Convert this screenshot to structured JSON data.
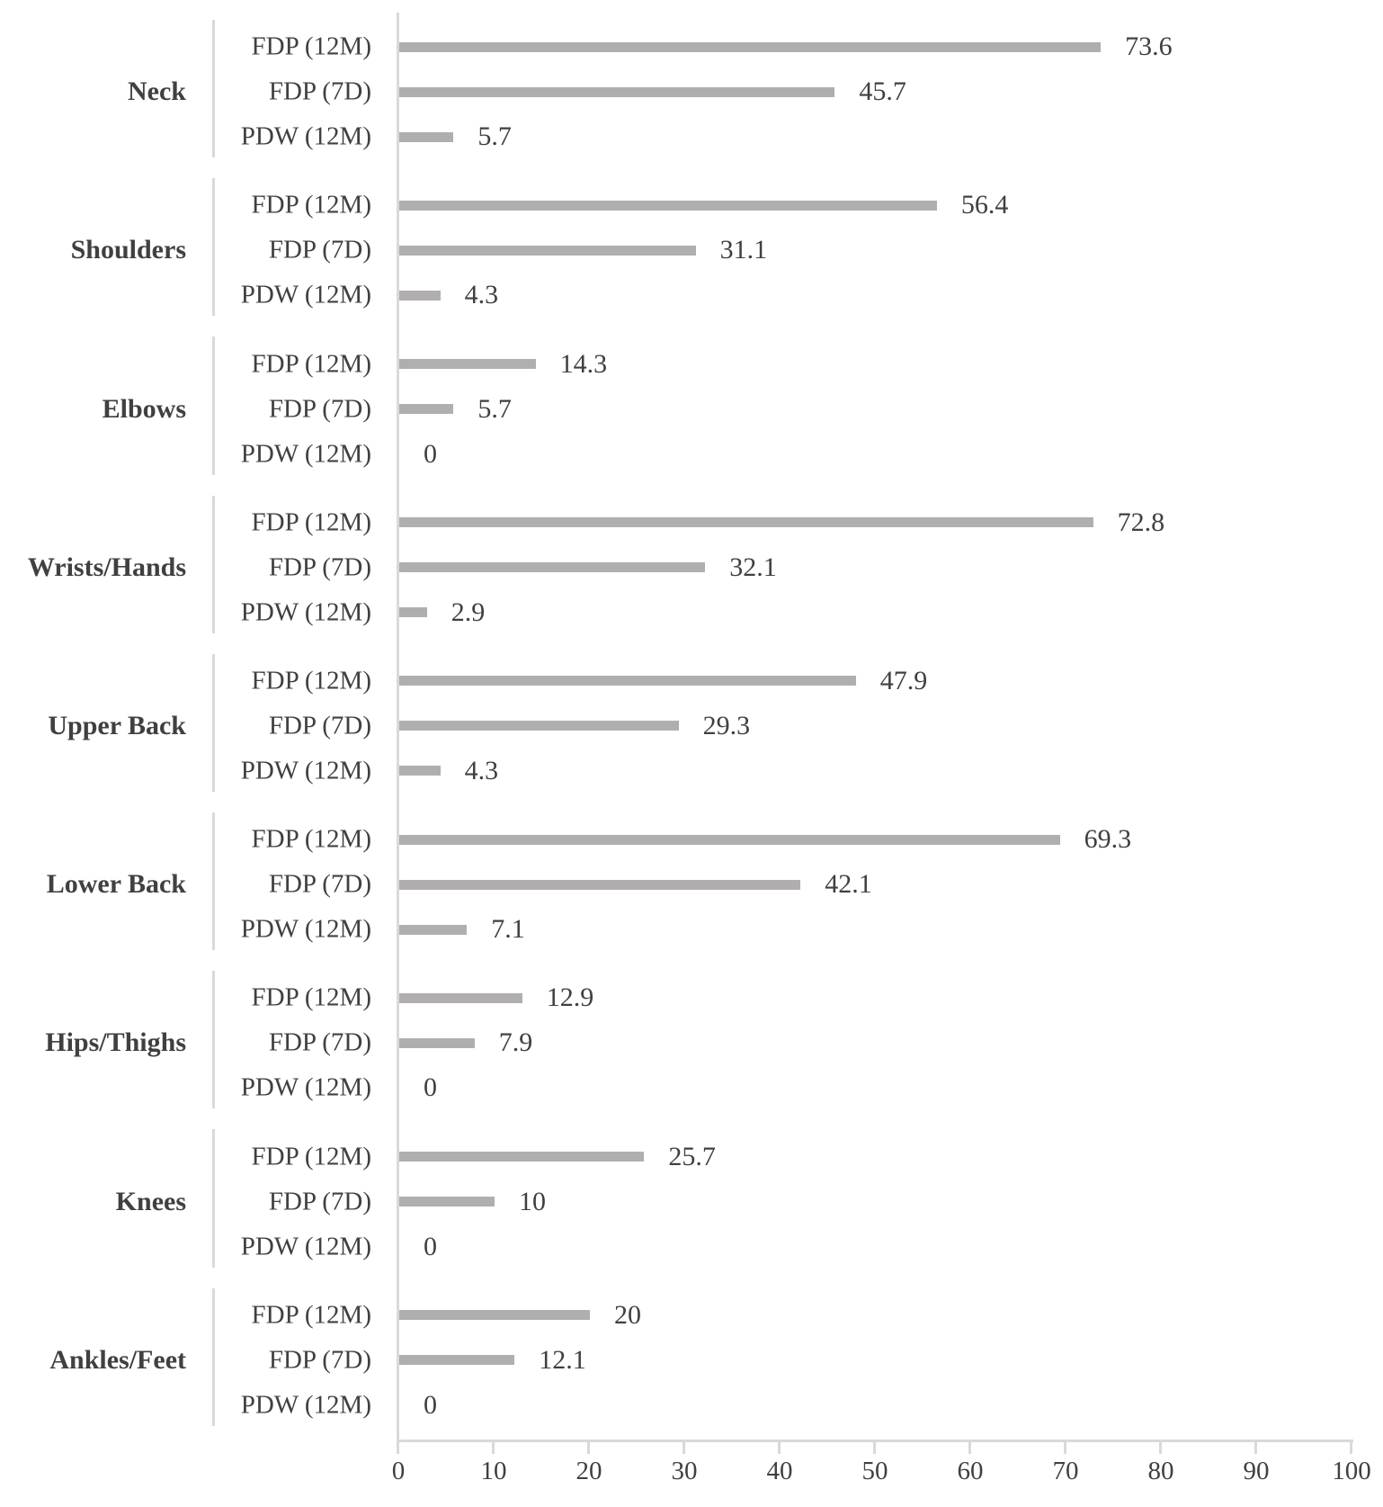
{
  "chart_data": {
    "type": "bar",
    "orientation": "horizontal",
    "title": "",
    "xlabel": "",
    "ylabel": "",
    "grid": false,
    "legend_position": "none",
    "series_labels": [
      "FDP (12M)",
      "FDP (7D)",
      "PDW (12M)"
    ],
    "categories": [
      "Neck",
      "Shoulders",
      "Elbows",
      "Wrists/Hands",
      "Upper Back",
      "Lower Back",
      "Hips/Thighs",
      "Knees",
      "Ankles/Feet"
    ],
    "groups": [
      {
        "category": "Neck",
        "values": [
          73.6,
          45.7,
          5.7
        ]
      },
      {
        "category": "Shoulders",
        "values": [
          56.4,
          31.1,
          4.3
        ]
      },
      {
        "category": "Elbows",
        "values": [
          14.3,
          5.7,
          0
        ]
      },
      {
        "category": "Wrists/Hands",
        "values": [
          72.8,
          32.1,
          2.9
        ]
      },
      {
        "category": "Upper Back",
        "values": [
          47.9,
          29.3,
          4.3
        ]
      },
      {
        "category": "Lower Back",
        "values": [
          69.3,
          42.1,
          7.1
        ]
      },
      {
        "category": "Hips/Thighs",
        "values": [
          12.9,
          7.9,
          0
        ]
      },
      {
        "category": "Knees",
        "values": [
          25.7,
          10,
          0
        ]
      },
      {
        "category": "Ankles/Feet",
        "values": [
          20,
          12.1,
          0
        ]
      }
    ],
    "x_axis": {
      "min": 0,
      "max": 100,
      "tick_interval": 10,
      "tick_labels": [
        "0",
        "10",
        "20",
        "30",
        "40",
        "50",
        "60",
        "70",
        "80",
        "90",
        "100"
      ]
    },
    "colors": {
      "bar": "#b1aeae",
      "axis": "#d9d9d9",
      "text": "#404040"
    }
  }
}
